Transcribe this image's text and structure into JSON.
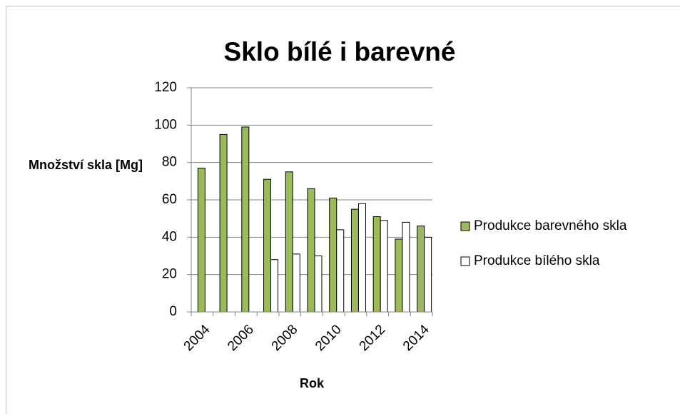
{
  "chart_data": {
    "type": "bar",
    "title": "Sklo bílé i barevné",
    "x_label": "Rok",
    "y_label": "Množství skla [Mg]",
    "categories": [
      "2004",
      null,
      "2006",
      null,
      "2008",
      null,
      "2010",
      null,
      "2012",
      null,
      "2014"
    ],
    "series": [
      {
        "name": "Produkce barevného skla",
        "color": "#9bbb59",
        "values": [
          77,
          95,
          99,
          71,
          75,
          66,
          61,
          55,
          51,
          39,
          46
        ]
      },
      {
        "name": "Produkce bílého skla",
        "color": "#ffffff",
        "values": [
          null,
          null,
          null,
          28,
          31,
          30,
          44,
          58,
          49,
          48,
          40
        ]
      }
    ],
    "ylim": [
      0,
      120
    ],
    "yticks": [
      0,
      20,
      40,
      60,
      80,
      100,
      120
    ],
    "grid": true,
    "legend": "right"
  }
}
